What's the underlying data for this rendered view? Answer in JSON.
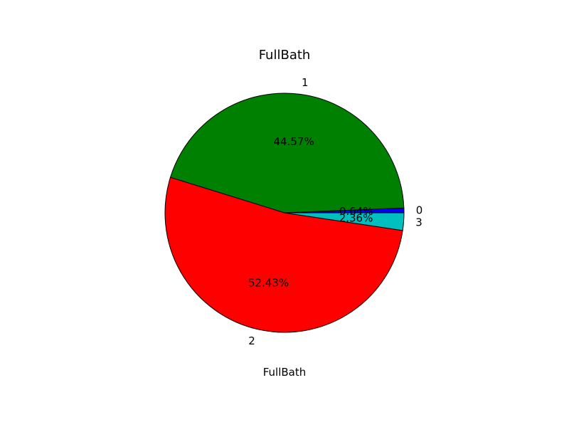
{
  "chart_data": {
    "type": "pie",
    "title": "FullBath",
    "xlabel": "FullBath",
    "start_angle_deg": 0,
    "direction": "counterclockwise",
    "slices": [
      {
        "label": "0",
        "value": 0.64,
        "pct_label": "0.64%",
        "color": "#0000ff"
      },
      {
        "label": "1",
        "value": 44.57,
        "pct_label": "44.57%",
        "color": "#008000"
      },
      {
        "label": "2",
        "value": 52.43,
        "pct_label": "52.43%",
        "color": "#ff0000"
      },
      {
        "label": "3",
        "value": 2.36,
        "pct_label": "2.36%",
        "color": "#00bfbf"
      }
    ]
  }
}
